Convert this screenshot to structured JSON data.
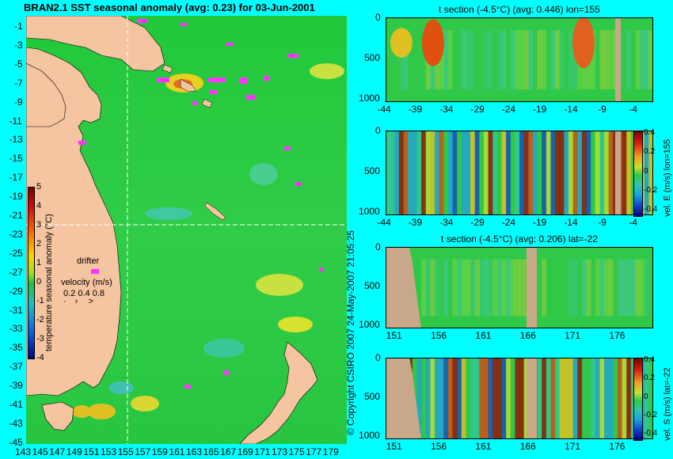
{
  "main_map": {
    "title": "BRAN2.1 SST seasonal anomaly (avg: 0.23) for 03-Jun-2001",
    "lat_labels": [
      "-1",
      "-3",
      "-5",
      "-7",
      "-9",
      "-11",
      "-13",
      "-15",
      "-17",
      "-19",
      "-21",
      "-23",
      "-25",
      "-27",
      "-29",
      "-31",
      "-33",
      "-35",
      "-37",
      "-39",
      "-41",
      "-43",
      "-45"
    ],
    "lon_labels": [
      "143",
      "145",
      "147",
      "149",
      "151",
      "153",
      "155",
      "157",
      "159",
      "161",
      "163",
      "165",
      "167",
      "169",
      "171",
      "173",
      "175",
      "177",
      "179"
    ],
    "colorbar": {
      "label": "temperature seasonal anomaly (°C)",
      "ticks": [
        "5",
        "4",
        "3",
        "2",
        "1",
        "0",
        "-1",
        "-2",
        "-3",
        "-4"
      ]
    },
    "drifter_label": "drifter",
    "velocity_label": "velocity (m/s)",
    "velocity_scale": "0.2 0.4 0.8",
    "crosshair_lon": 155,
    "crosshair_lat": -22,
    "colors": {
      "ocean": "#1ec83a",
      "land": "#f5c4a0",
      "drifter": "#ff33ff",
      "background": "#00ffff"
    }
  },
  "copyright": "© Copyright CSIRO 2007  24-May-2007 21:05:25",
  "panels": [
    {
      "id": "t-section-lon",
      "title": "t section (-4.5°C) (avg: 0.446) lon=155",
      "y_ticks": [
        "0",
        "500",
        "1000"
      ],
      "x_ticks": [
        "-44",
        "-39",
        "-34",
        "-29",
        "-24",
        "-19",
        "-14",
        "-9",
        "-4"
      ],
      "side_label": ""
    },
    {
      "id": "vel-e-lon",
      "title": "",
      "y_ticks": [
        "0",
        "500",
        "1000"
      ],
      "x_ticks": [
        "-44",
        "-39",
        "-34",
        "-29",
        "-24",
        "-19",
        "-14",
        "-9",
        "-4"
      ],
      "side_label": "vel. E (m/s) lon=155",
      "colorbar_ticks": [
        "0.4",
        "0.2",
        "0",
        "-0.2",
        "-0.4"
      ]
    },
    {
      "id": "t-section-lat",
      "title": "t section (-4.5°C) (avg: 0.206) lat=-22",
      "y_ticks": [
        "0",
        "500",
        "1000"
      ],
      "x_ticks": [
        "151",
        "156",
        "161",
        "166",
        "171",
        "176"
      ],
      "side_label": ""
    },
    {
      "id": "vel-s-lat",
      "title": "",
      "y_ticks": [
        "0",
        "500",
        "1000"
      ],
      "x_ticks": [
        "151",
        "156",
        "161",
        "166",
        "171",
        "176"
      ],
      "side_label": "vel. S (m/s) lat=-22",
      "colorbar_ticks": [
        "0.4",
        "0.2",
        "0",
        "-0.2",
        "-0.4"
      ]
    }
  ],
  "chart_data": [
    {
      "type": "heatmap",
      "title": "BRAN2.1 SST seasonal anomaly (avg: 0.23) for 03-Jun-2001",
      "avg": 0.23,
      "xlim": [
        143,
        179
      ],
      "ylim": [
        -45,
        -1
      ],
      "colorbar_range": [
        -4,
        5
      ]
    },
    {
      "type": "heatmap",
      "title": "t section (-4.5°C) (avg: 0.446) lon=155",
      "avg": 0.446,
      "xlim": [
        -44,
        -1
      ],
      "ylim": [
        1000,
        0
      ]
    },
    {
      "type": "heatmap",
      "title": "",
      "xlim": [
        -44,
        -1
      ],
      "ylim": [
        1000,
        0
      ],
      "colorbar_range": [
        -0.4,
        0.4
      ]
    },
    {
      "type": "heatmap",
      "title": "t section (-4.5°C) (avg: 0.206) lat=-22",
      "avg": 0.206,
      "xlim": [
        151,
        180
      ],
      "ylim": [
        1000,
        0
      ]
    },
    {
      "type": "heatmap",
      "title": "",
      "xlim": [
        151,
        180
      ],
      "ylim": [
        1000,
        0
      ],
      "colorbar_range": [
        -0.4,
        0.4
      ]
    }
  ]
}
